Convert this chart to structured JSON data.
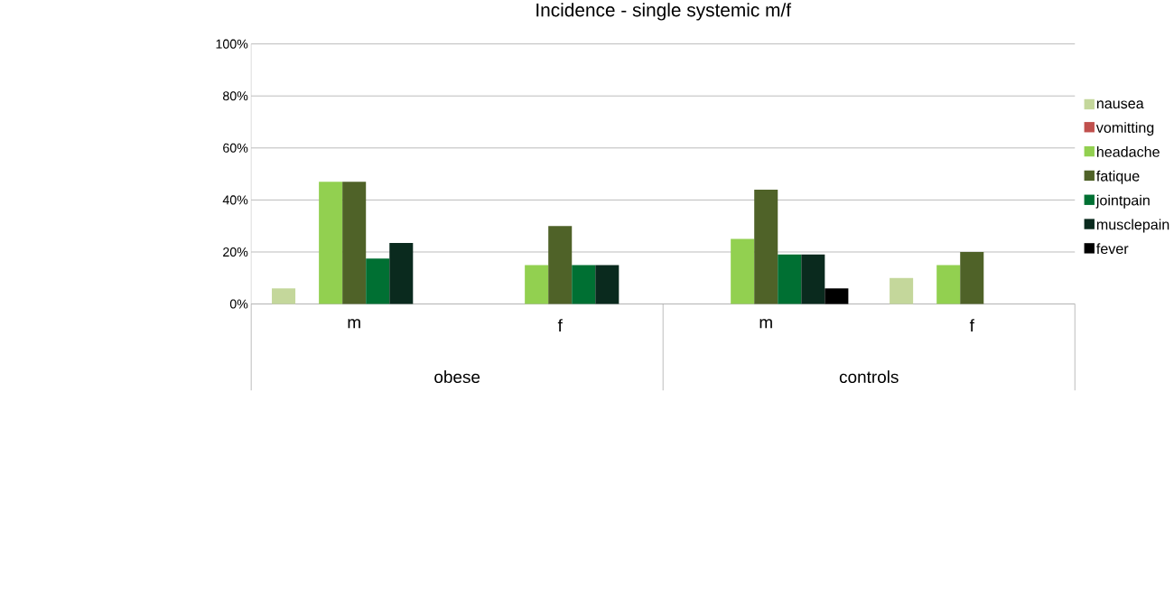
{
  "chart_data": {
    "type": "bar",
    "title": "Incidence - single systemic m/f",
    "categories": [
      "m",
      "f",
      "m",
      "f"
    ],
    "annotations": [
      "obese",
      "controls"
    ],
    "series": [
      {
        "name": "nausea",
        "color": "#c4d79b",
        "values": [
          6,
          null,
          null,
          10
        ]
      },
      {
        "name": "vomitting",
        "color": "#c0504d",
        "values": [
          null,
          null,
          null,
          null
        ]
      },
      {
        "name": "headache",
        "color": "#92d050",
        "values": [
          47,
          15,
          25,
          15
        ]
      },
      {
        "name": "fatique",
        "color": "#4f6228",
        "values": [
          47,
          30,
          44,
          20
        ]
      },
      {
        "name": "jointpain",
        "color": "#007033",
        "values": [
          17.5,
          15,
          19,
          null
        ]
      },
      {
        "name": "musclepain",
        "color": "#0a2a1e",
        "values": [
          23.5,
          15,
          19,
          null
        ]
      },
      {
        "name": "fever",
        "color": "#000000",
        "values": [
          null,
          null,
          6,
          null
        ]
      }
    ],
    "ylim": [
      0,
      100
    ],
    "yticks": [
      {
        "value": 0,
        "label": "0%"
      },
      {
        "value": 20,
        "label": "20%"
      },
      {
        "value": 40,
        "label": "40%"
      },
      {
        "value": 60,
        "label": "60%"
      },
      {
        "value": 80,
        "label": "80%"
      },
      {
        "value": 100,
        "label": "100%"
      }
    ],
    "grid": "y",
    "legend": "right"
  }
}
